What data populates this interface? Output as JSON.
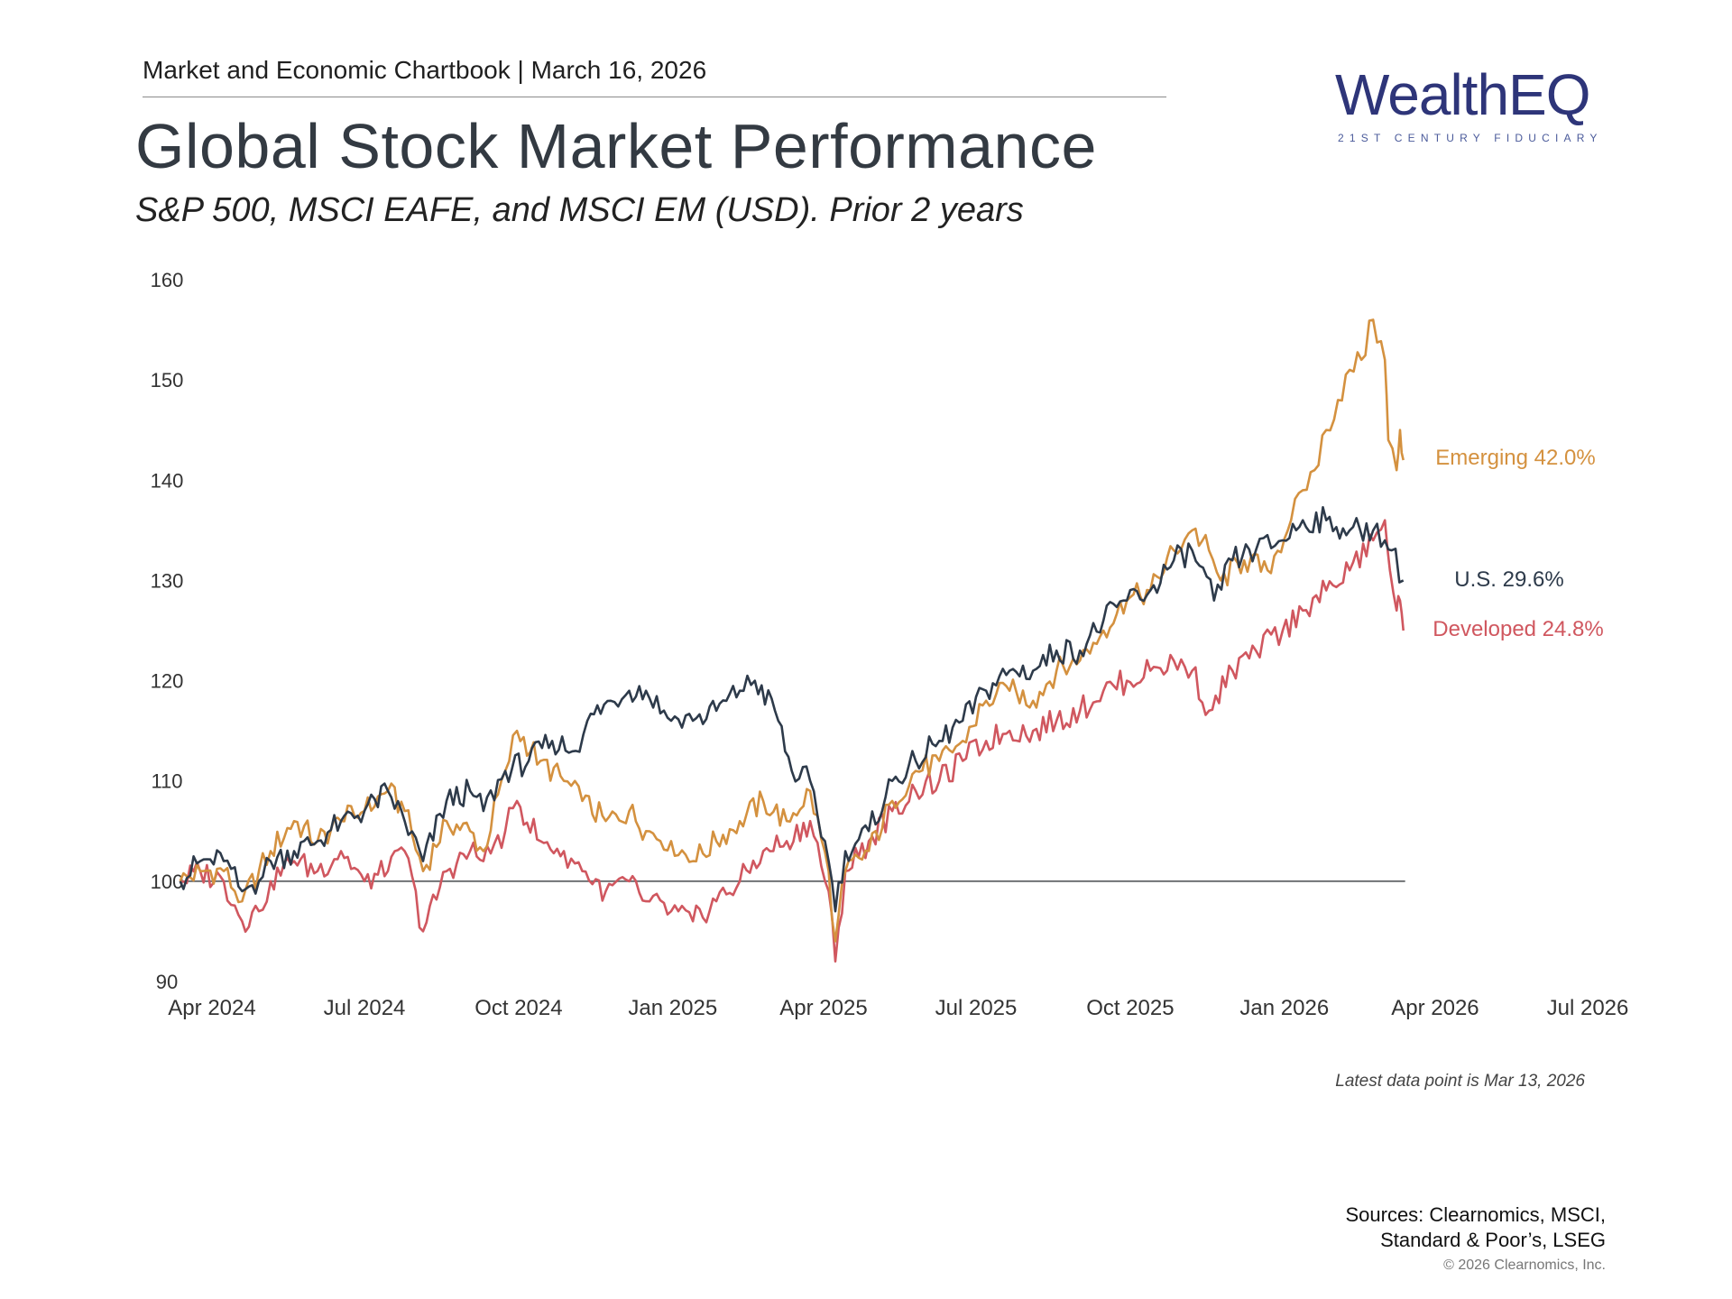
{
  "header": {
    "chartbook_label": "Market and Economic Chartbook | March 16, 2026",
    "title": "Global Stock Market Performance",
    "subtitle": "S&P 500, MSCI EAFE, and MSCI EM (USD). Prior 2 years"
  },
  "logo": {
    "wordmark": "WealthEQ",
    "tagline": "21ST CENTURY FIDUCIARY",
    "color": "#2e3579"
  },
  "chart_data": {
    "type": "line",
    "title": "Global Stock Market Performance",
    "subtitle": "S&P 500, MSCI EAFE, and MSCI EM (USD). Prior 2 years",
    "xlabel": "",
    "ylabel": "",
    "x_range": [
      "2024-04-01",
      "2026-07-01"
    ],
    "ylim": [
      90,
      160
    ],
    "y_ticks": [
      90,
      100,
      110,
      120,
      130,
      140,
      150,
      160
    ],
    "x_ticks": [
      {
        "date": "2024-04-01",
        "label": "Apr 2024"
      },
      {
        "date": "2024-07-01",
        "label": "Jul 2024"
      },
      {
        "date": "2024-10-01",
        "label": "Oct 2024"
      },
      {
        "date": "2025-01-01",
        "label": "Jan 2025"
      },
      {
        "date": "2025-04-01",
        "label": "Apr 2025"
      },
      {
        "date": "2025-07-01",
        "label": "Jul 2025"
      },
      {
        "date": "2025-10-01",
        "label": "Oct 2025"
      },
      {
        "date": "2026-01-01",
        "label": "Jan 2026"
      },
      {
        "date": "2026-04-01",
        "label": "Apr 2026"
      },
      {
        "date": "2026-07-01",
        "label": "Jul 2026"
      }
    ],
    "baseline": 100,
    "grid": false,
    "series": [
      {
        "name": "Emerging 42.0%",
        "color": "#d4913f",
        "points": [
          [
            "2024-03-13",
            100
          ],
          [
            "2024-03-25",
            101
          ],
          [
            "2024-04-08",
            101
          ],
          [
            "2024-04-19",
            98
          ],
          [
            "2024-04-29",
            101
          ],
          [
            "2024-05-06",
            103
          ],
          [
            "2024-05-20",
            106
          ],
          [
            "2024-06-03",
            104
          ],
          [
            "2024-06-17",
            106
          ],
          [
            "2024-07-01",
            107
          ],
          [
            "2024-07-15",
            109
          ],
          [
            "2024-07-25",
            107
          ],
          [
            "2024-08-05",
            101
          ],
          [
            "2024-08-19",
            106
          ],
          [
            "2024-09-02",
            105
          ],
          [
            "2024-09-10",
            103
          ],
          [
            "2024-09-23",
            111
          ],
          [
            "2024-09-30",
            115
          ],
          [
            "2024-10-14",
            112
          ],
          [
            "2024-10-28",
            110
          ],
          [
            "2024-11-08",
            108
          ],
          [
            "2024-11-22",
            106
          ],
          [
            "2024-12-06",
            107
          ],
          [
            "2024-12-16",
            105
          ],
          [
            "2024-12-31",
            104
          ],
          [
            "2025-01-13",
            102
          ],
          [
            "2025-01-27",
            104
          ],
          [
            "2025-02-10",
            106
          ],
          [
            "2025-02-24",
            108
          ],
          [
            "2025-03-10",
            106
          ],
          [
            "2025-03-24",
            109
          ],
          [
            "2025-04-04",
            101
          ],
          [
            "2025-04-08",
            94
          ],
          [
            "2025-04-14",
            101
          ],
          [
            "2025-04-28",
            103
          ],
          [
            "2025-05-12",
            108
          ],
          [
            "2025-05-26",
            111
          ],
          [
            "2025-06-09",
            112
          ],
          [
            "2025-06-23",
            114
          ],
          [
            "2025-07-07",
            118
          ],
          [
            "2025-07-21",
            119
          ],
          [
            "2025-08-04",
            118
          ],
          [
            "2025-08-18",
            121
          ],
          [
            "2025-09-01",
            122
          ],
          [
            "2025-09-15",
            125
          ],
          [
            "2025-09-29",
            128
          ],
          [
            "2025-10-13",
            129
          ],
          [
            "2025-10-27",
            133
          ],
          [
            "2025-11-07",
            135
          ],
          [
            "2025-11-17",
            133
          ],
          [
            "2025-11-24",
            130
          ],
          [
            "2025-12-08",
            132
          ],
          [
            "2025-12-22",
            131
          ],
          [
            "2026-01-05",
            136
          ],
          [
            "2026-01-12",
            139
          ],
          [
            "2026-01-19",
            141
          ],
          [
            "2026-01-26",
            145
          ],
          [
            "2026-02-02",
            148
          ],
          [
            "2026-02-09",
            151
          ],
          [
            "2026-02-16",
            152
          ],
          [
            "2026-02-23",
            156
          ],
          [
            "2026-03-02",
            152
          ],
          [
            "2026-03-04",
            144
          ],
          [
            "2026-03-09",
            141
          ],
          [
            "2026-03-11",
            145
          ],
          [
            "2026-03-13",
            142
          ]
        ]
      },
      {
        "name": "U.S. 29.6%",
        "color": "#2d3a4a",
        "points": [
          [
            "2024-03-13",
            100
          ],
          [
            "2024-03-25",
            102
          ],
          [
            "2024-04-08",
            102
          ],
          [
            "2024-04-19",
            99
          ],
          [
            "2024-04-29",
            100
          ],
          [
            "2024-05-06",
            102
          ],
          [
            "2024-05-20",
            103
          ],
          [
            "2024-06-03",
            104
          ],
          [
            "2024-06-17",
            106
          ],
          [
            "2024-07-01",
            107
          ],
          [
            "2024-07-15",
            109
          ],
          [
            "2024-07-25",
            106
          ],
          [
            "2024-08-05",
            102
          ],
          [
            "2024-08-19",
            108
          ],
          [
            "2024-09-02",
            109
          ],
          [
            "2024-09-10",
            107
          ],
          [
            "2024-09-23",
            111
          ],
          [
            "2024-10-07",
            112
          ],
          [
            "2024-10-21",
            114
          ],
          [
            "2024-11-04",
            113
          ],
          [
            "2024-11-11",
            116
          ],
          [
            "2024-11-25",
            118
          ],
          [
            "2024-12-06",
            119
          ],
          [
            "2024-12-16",
            119
          ],
          [
            "2024-12-31",
            116
          ],
          [
            "2025-01-13",
            116
          ],
          [
            "2025-01-27",
            117
          ],
          [
            "2025-02-10",
            119
          ],
          [
            "2025-02-19",
            120
          ],
          [
            "2025-03-03",
            117
          ],
          [
            "2025-03-13",
            111
          ],
          [
            "2025-03-24",
            110
          ],
          [
            "2025-04-04",
            102
          ],
          [
            "2025-04-08",
            97
          ],
          [
            "2025-04-14",
            103
          ],
          [
            "2025-04-28",
            105
          ],
          [
            "2025-05-12",
            110
          ],
          [
            "2025-05-26",
            112
          ],
          [
            "2025-06-09",
            114
          ],
          [
            "2025-06-23",
            116
          ],
          [
            "2025-07-07",
            119
          ],
          [
            "2025-07-21",
            121
          ],
          [
            "2025-08-04",
            121
          ],
          [
            "2025-08-18",
            123
          ],
          [
            "2025-09-01",
            123
          ],
          [
            "2025-09-15",
            126
          ],
          [
            "2025-09-29",
            128
          ],
          [
            "2025-10-13",
            129
          ],
          [
            "2025-10-27",
            132
          ],
          [
            "2025-11-07",
            133
          ],
          [
            "2025-11-20",
            128
          ],
          [
            "2025-12-01",
            132
          ],
          [
            "2025-12-15",
            133
          ],
          [
            "2025-12-31",
            134
          ],
          [
            "2026-01-12",
            136
          ],
          [
            "2026-01-26",
            136
          ],
          [
            "2026-02-09",
            135
          ],
          [
            "2026-02-23",
            135
          ],
          [
            "2026-03-02",
            134
          ],
          [
            "2026-03-06",
            133
          ],
          [
            "2026-03-13",
            130
          ]
        ]
      },
      {
        "name": "Developed 24.8%",
        "color": "#d0575f",
        "points": [
          [
            "2024-03-13",
            100
          ],
          [
            "2024-03-25",
            101
          ],
          [
            "2024-04-08",
            100
          ],
          [
            "2024-04-19",
            96
          ],
          [
            "2024-04-29",
            97
          ],
          [
            "2024-05-06",
            100
          ],
          [
            "2024-05-20",
            102
          ],
          [
            "2024-06-03",
            101
          ],
          [
            "2024-06-17",
            103
          ],
          [
            "2024-07-01",
            100
          ],
          [
            "2024-07-15",
            101
          ],
          [
            "2024-07-25",
            103
          ],
          [
            "2024-08-05",
            95
          ],
          [
            "2024-08-19",
            101
          ],
          [
            "2024-09-02",
            103
          ],
          [
            "2024-09-10",
            102
          ],
          [
            "2024-09-23",
            105
          ],
          [
            "2024-09-30",
            108
          ],
          [
            "2024-10-14",
            104
          ],
          [
            "2024-10-28",
            103
          ],
          [
            "2024-11-08",
            101
          ],
          [
            "2024-11-22",
            99
          ],
          [
            "2024-12-06",
            100
          ],
          [
            "2024-12-16",
            98
          ],
          [
            "2024-12-31",
            97
          ],
          [
            "2025-01-13",
            96
          ],
          [
            "2025-01-27",
            98
          ],
          [
            "2025-02-10",
            100
          ],
          [
            "2025-02-24",
            103
          ],
          [
            "2025-03-10",
            104
          ],
          [
            "2025-03-24",
            106
          ],
          [
            "2025-04-04",
            99
          ],
          [
            "2025-04-08",
            92
          ],
          [
            "2025-04-14",
            101
          ],
          [
            "2025-04-28",
            104
          ],
          [
            "2025-05-12",
            107
          ],
          [
            "2025-05-26",
            109
          ],
          [
            "2025-06-09",
            110
          ],
          [
            "2025-06-23",
            112
          ],
          [
            "2025-07-07",
            114
          ],
          [
            "2025-07-21",
            115
          ],
          [
            "2025-08-04",
            115
          ],
          [
            "2025-08-18",
            116
          ],
          [
            "2025-09-01",
            117
          ],
          [
            "2025-09-15",
            119
          ],
          [
            "2025-09-29",
            120
          ],
          [
            "2025-10-13",
            121
          ],
          [
            "2025-10-27",
            122
          ],
          [
            "2025-11-07",
            121
          ],
          [
            "2025-11-17",
            117
          ],
          [
            "2025-12-01",
            121
          ],
          [
            "2025-12-15",
            123
          ],
          [
            "2025-12-31",
            125
          ],
          [
            "2026-01-12",
            127
          ],
          [
            "2026-01-26",
            129
          ],
          [
            "2026-02-09",
            131
          ],
          [
            "2026-02-23",
            134
          ],
          [
            "2026-03-02",
            136
          ],
          [
            "2026-03-05",
            131
          ],
          [
            "2026-03-09",
            127
          ],
          [
            "2026-03-11",
            128
          ],
          [
            "2026-03-13",
            125
          ]
        ]
      }
    ]
  },
  "footnote": "Latest data point is Mar 13, 2026",
  "sources": {
    "line1": "Sources: Clearnomics, MSCI,",
    "line2": "Standard & Poor’s, LSEG"
  },
  "copyright": "© 2026 Clearnomics, Inc."
}
